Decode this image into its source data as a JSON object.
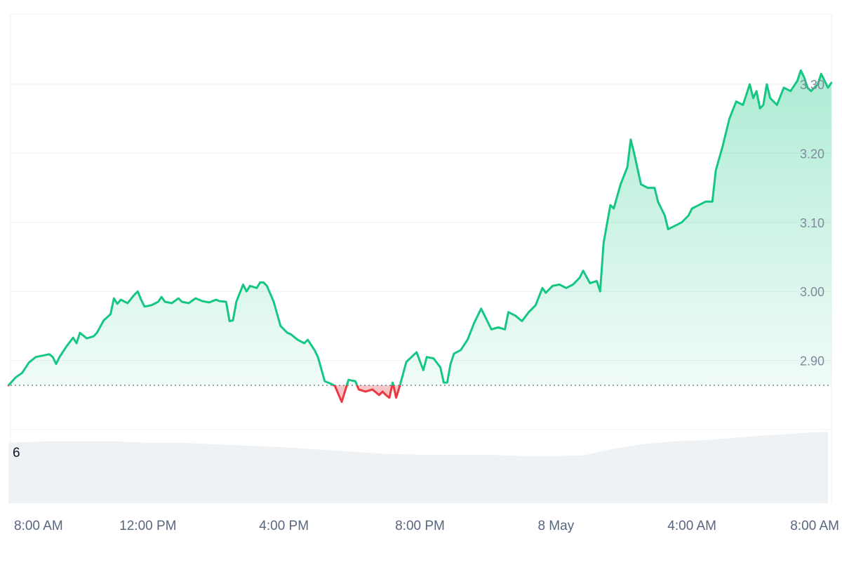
{
  "chart_data": {
    "type": "area",
    "title": "",
    "xlabel": "",
    "ylabel": "",
    "baseline": 2.864,
    "ylim": [
      2.8,
      3.4
    ],
    "y_ticks": [
      {
        "value": 2.9,
        "label": "2.90"
      },
      {
        "value": 3.0,
        "label": "3.00"
      },
      {
        "value": 3.1,
        "label": "3.10"
      },
      {
        "value": 3.2,
        "label": "3.20"
      },
      {
        "value": 3.3,
        "label": "3.30"
      }
    ],
    "x_ticks": [
      {
        "t": 0,
        "label": "8:00 AM"
      },
      {
        "t": 4,
        "label": "12:00 PM"
      },
      {
        "t": 8,
        "label": "4:00 PM"
      },
      {
        "t": 12,
        "label": "8:00 PM"
      },
      {
        "t": 16,
        "label": "8 May"
      },
      {
        "t": 20,
        "label": "4:00 AM"
      },
      {
        "t": 24,
        "label": "8:00 AM"
      }
    ],
    "series": [
      {
        "up_color": "#16c784",
        "down_color": "#ea3943",
        "points": [
          [
            -0.1,
            2.864
          ],
          [
            0.1,
            2.875
          ],
          [
            0.3,
            2.882
          ],
          [
            0.5,
            2.897
          ],
          [
            0.7,
            2.905
          ],
          [
            0.9,
            2.907
          ],
          [
            1.1,
            2.909
          ],
          [
            1.2,
            2.905
          ],
          [
            1.3,
            2.895
          ],
          [
            1.4,
            2.905
          ],
          [
            1.6,
            2.92
          ],
          [
            1.8,
            2.933
          ],
          [
            1.9,
            2.925
          ],
          [
            2.0,
            2.94
          ],
          [
            2.2,
            2.932
          ],
          [
            2.4,
            2.935
          ],
          [
            2.5,
            2.94
          ],
          [
            2.7,
            2.958
          ],
          [
            2.9,
            2.967
          ],
          [
            3.0,
            2.99
          ],
          [
            3.1,
            2.982
          ],
          [
            3.2,
            2.988
          ],
          [
            3.4,
            2.983
          ],
          [
            3.6,
            2.995
          ],
          [
            3.7,
            3.0
          ],
          [
            3.8,
            2.988
          ],
          [
            3.9,
            2.978
          ],
          [
            4.1,
            2.98
          ],
          [
            4.3,
            2.985
          ],
          [
            4.4,
            2.992
          ],
          [
            4.5,
            2.985
          ],
          [
            4.7,
            2.983
          ],
          [
            4.9,
            2.99
          ],
          [
            5.0,
            2.985
          ],
          [
            5.2,
            2.983
          ],
          [
            5.4,
            2.99
          ],
          [
            5.6,
            2.986
          ],
          [
            5.8,
            2.984
          ],
          [
            6.0,
            2.988
          ],
          [
            6.1,
            2.986
          ],
          [
            6.3,
            2.985
          ],
          [
            6.4,
            2.957
          ],
          [
            6.5,
            2.958
          ],
          [
            6.6,
            2.985
          ],
          [
            6.8,
            3.01
          ],
          [
            6.9,
            3.0
          ],
          [
            7.0,
            3.008
          ],
          [
            7.2,
            3.005
          ],
          [
            7.3,
            3.013
          ],
          [
            7.4,
            3.013
          ],
          [
            7.5,
            3.008
          ],
          [
            7.7,
            2.985
          ],
          [
            7.9,
            2.95
          ],
          [
            8.1,
            2.94
          ],
          [
            8.2,
            2.938
          ],
          [
            8.4,
            2.93
          ],
          [
            8.6,
            2.925
          ],
          [
            8.7,
            2.93
          ],
          [
            8.9,
            2.915
          ],
          [
            9.0,
            2.905
          ],
          [
            9.2,
            2.87
          ],
          [
            9.4,
            2.866
          ],
          [
            9.5,
            2.863
          ],
          [
            9.7,
            2.84
          ],
          [
            9.9,
            2.872
          ],
          [
            10.1,
            2.87
          ],
          [
            10.2,
            2.858
          ],
          [
            10.4,
            2.855
          ],
          [
            10.6,
            2.858
          ],
          [
            10.8,
            2.85
          ],
          [
            10.9,
            2.855
          ],
          [
            11.0,
            2.85
          ],
          [
            11.1,
            2.846
          ],
          [
            11.2,
            2.868
          ],
          [
            11.3,
            2.846
          ],
          [
            11.4,
            2.862
          ],
          [
            11.6,
            2.898
          ],
          [
            11.9,
            2.912
          ],
          [
            12.1,
            2.886
          ],
          [
            12.2,
            2.905
          ],
          [
            12.4,
            2.903
          ],
          [
            12.6,
            2.89
          ],
          [
            12.7,
            2.868
          ],
          [
            12.8,
            2.868
          ],
          [
            12.9,
            2.895
          ],
          [
            13.0,
            2.91
          ],
          [
            13.2,
            2.915
          ],
          [
            13.4,
            2.93
          ],
          [
            13.6,
            2.955
          ],
          [
            13.8,
            2.975
          ],
          [
            13.9,
            2.965
          ],
          [
            14.1,
            2.945
          ],
          [
            14.3,
            2.948
          ],
          [
            14.5,
            2.945
          ],
          [
            14.6,
            2.97
          ],
          [
            14.8,
            2.965
          ],
          [
            15.0,
            2.957
          ],
          [
            15.2,
            2.97
          ],
          [
            15.4,
            2.98
          ],
          [
            15.6,
            3.005
          ],
          [
            15.7,
            2.998
          ],
          [
            15.9,
            3.008
          ],
          [
            16.1,
            3.01
          ],
          [
            16.3,
            3.005
          ],
          [
            16.5,
            3.01
          ],
          [
            16.7,
            3.02
          ],
          [
            16.8,
            3.03
          ],
          [
            17.0,
            3.012
          ],
          [
            17.2,
            3.015
          ],
          [
            17.3,
            3.0
          ],
          [
            17.4,
            3.07
          ],
          [
            17.6,
            3.125
          ],
          [
            17.7,
            3.12
          ],
          [
            17.9,
            3.155
          ],
          [
            18.1,
            3.18
          ],
          [
            18.2,
            3.22
          ],
          [
            18.3,
            3.2
          ],
          [
            18.5,
            3.155
          ],
          [
            18.7,
            3.15
          ],
          [
            18.9,
            3.15
          ],
          [
            19.0,
            3.13
          ],
          [
            19.2,
            3.11
          ],
          [
            19.3,
            3.09
          ],
          [
            19.5,
            3.095
          ],
          [
            19.7,
            3.1
          ],
          [
            19.9,
            3.11
          ],
          [
            20.0,
            3.12
          ],
          [
            20.2,
            3.125
          ],
          [
            20.4,
            3.13
          ],
          [
            20.6,
            3.13
          ],
          [
            20.7,
            3.175
          ],
          [
            20.9,
            3.21
          ],
          [
            21.1,
            3.25
          ],
          [
            21.3,
            3.275
          ],
          [
            21.5,
            3.27
          ],
          [
            21.7,
            3.3
          ],
          [
            21.8,
            3.28
          ],
          [
            21.9,
            3.29
          ],
          [
            22.0,
            3.265
          ],
          [
            22.1,
            3.27
          ],
          [
            22.2,
            3.3
          ],
          [
            22.3,
            3.28
          ],
          [
            22.5,
            3.27
          ],
          [
            22.7,
            3.295
          ],
          [
            22.9,
            3.29
          ],
          [
            23.1,
            3.305
          ],
          [
            23.2,
            3.32
          ],
          [
            23.3,
            3.31
          ],
          [
            23.4,
            3.295
          ],
          [
            23.5,
            3.29
          ],
          [
            23.7,
            3.3
          ],
          [
            23.8,
            3.315
          ],
          [
            24.0,
            3.295
          ],
          [
            24.1,
            3.302
          ]
        ]
      }
    ],
    "volume": {
      "label": "6",
      "color": "#eff2f5",
      "points": [
        [
          -0.1,
          0.82
        ],
        [
          1.0,
          0.84
        ],
        [
          2.0,
          0.84
        ],
        [
          3.0,
          0.84
        ],
        [
          4.0,
          0.82
        ],
        [
          5.0,
          0.82
        ],
        [
          6.0,
          0.8
        ],
        [
          7.0,
          0.78
        ],
        [
          8.0,
          0.76
        ],
        [
          9.0,
          0.73
        ],
        [
          10.0,
          0.7
        ],
        [
          11.0,
          0.67
        ],
        [
          12.0,
          0.66
        ],
        [
          13.0,
          0.66
        ],
        [
          14.0,
          0.66
        ],
        [
          15.0,
          0.64
        ],
        [
          16.0,
          0.64
        ],
        [
          16.8,
          0.65
        ],
        [
          17.5,
          0.72
        ],
        [
          18.5,
          0.8
        ],
        [
          19.5,
          0.84
        ],
        [
          20.5,
          0.86
        ],
        [
          21.5,
          0.9
        ],
        [
          22.5,
          0.93
        ],
        [
          23.5,
          0.96
        ],
        [
          24.0,
          0.97
        ]
      ]
    },
    "grid": true
  }
}
